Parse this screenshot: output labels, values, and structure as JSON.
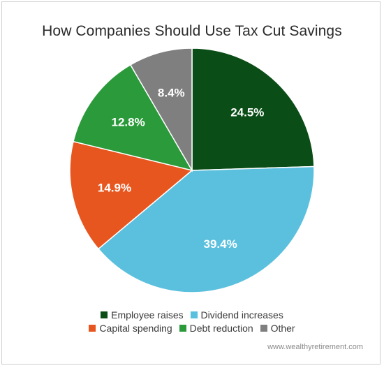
{
  "chart_data": {
    "type": "pie",
    "title": "How Companies Should Use Tax Cut Savings",
    "slices": [
      {
        "name": "Employee raises",
        "value": 24.5,
        "label": "24.5%",
        "color": "#0a4d16"
      },
      {
        "name": "Dividend increases",
        "value": 39.4,
        "label": "39.4%",
        "color": "#5bc0de"
      },
      {
        "name": "Capital spending",
        "value": 14.9,
        "label": "14.9%",
        "color": "#e8561f"
      },
      {
        "name": "Debt reduction",
        "value": 12.8,
        "label": "12.8%",
        "color": "#2a9a3a"
      },
      {
        "name": "Other",
        "value": 8.4,
        "label": "8.4%",
        "color": "#7f7f7f"
      }
    ],
    "start_angle": "12 o'clock",
    "direction": "clockwise",
    "legend_placement": "bottom"
  },
  "source": "www.wealthyretirement.com"
}
